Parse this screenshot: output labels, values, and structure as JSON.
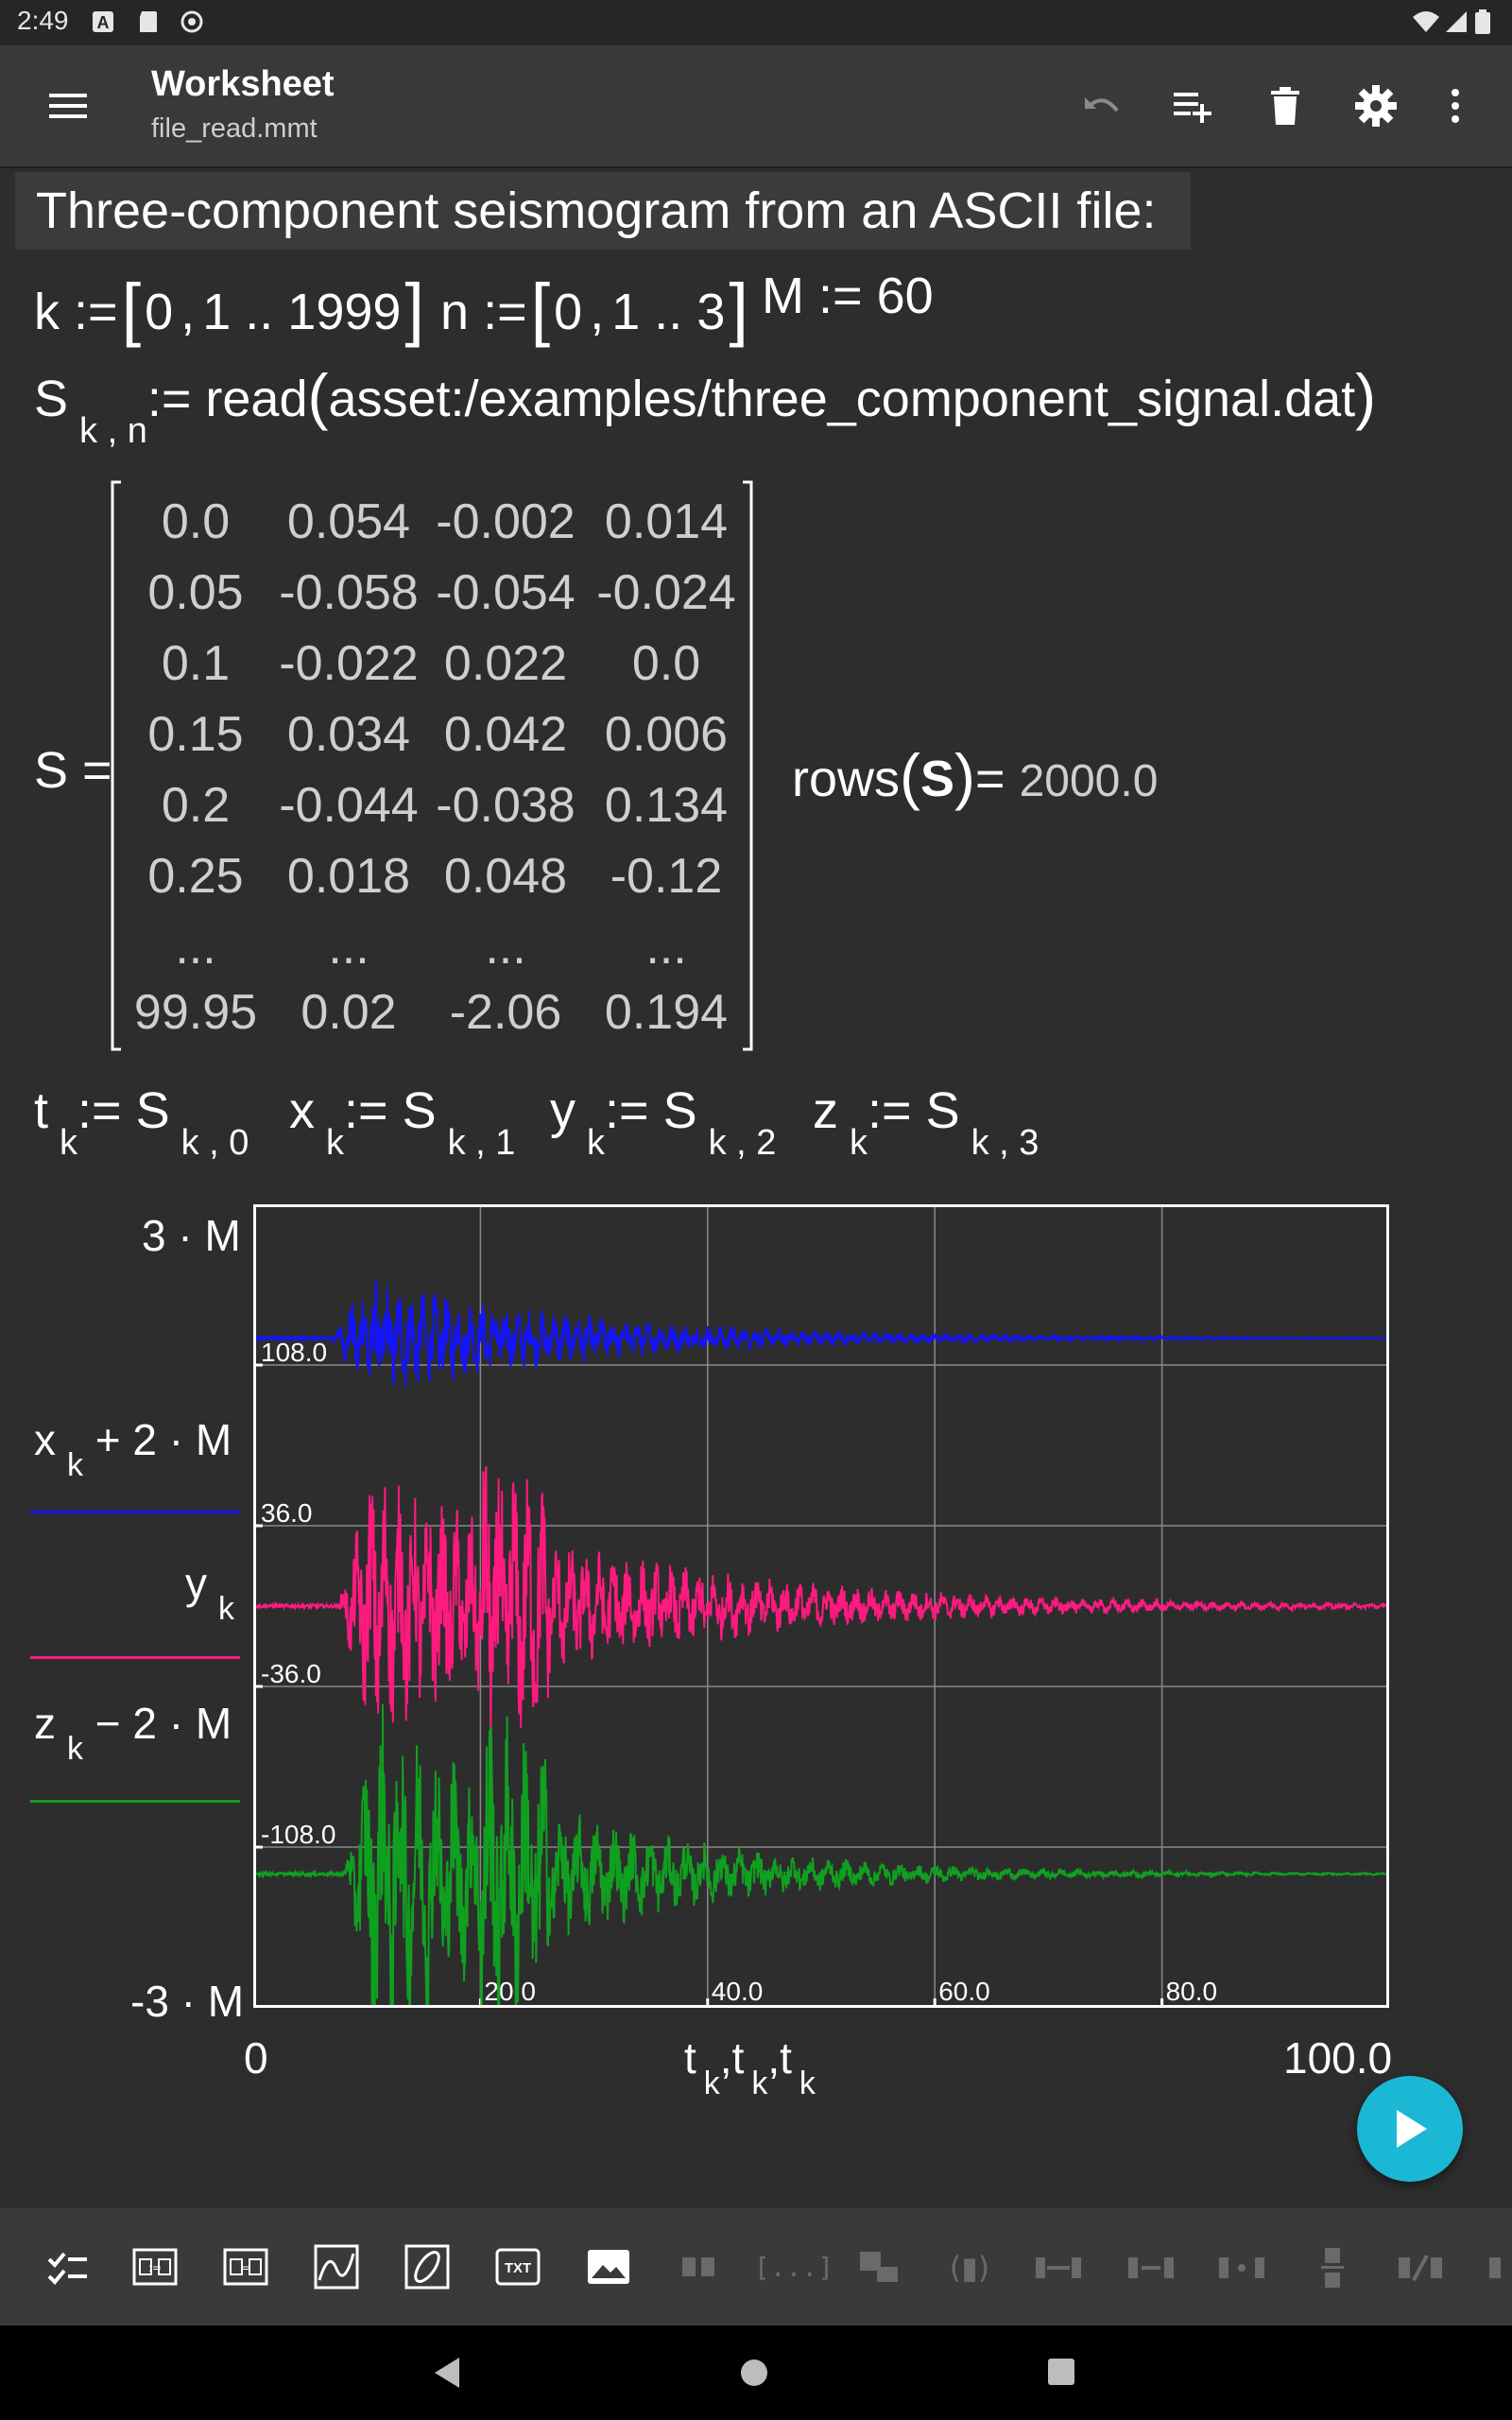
{
  "status": {
    "time": "2:49"
  },
  "appbar": {
    "title": "Worksheet",
    "file": "file_read.mmt"
  },
  "note": "Three-component seismogram from an ASCII file:",
  "defs": {
    "k": {
      "var": "k",
      "assign": ":=",
      "start": "0",
      "sep": ",",
      "second": "1",
      "dots": "..",
      "end": "1999"
    },
    "n": {
      "var": "n",
      "assign": ":=",
      "start": "0",
      "sep": ",",
      "second": "1",
      "dots": "..",
      "end": "3"
    },
    "M": {
      "var": "M",
      "assign": ":=",
      "value": "60"
    }
  },
  "read": {
    "var": "S",
    "sub": "k , n",
    "assign": ":=",
    "func": "read",
    "arg": "asset:/examples/three_component_signal.dat"
  },
  "matrix": {
    "label": "S =",
    "rows": [
      [
        "0.0",
        "0.054",
        "-0.002",
        "0.014"
      ],
      [
        "0.05",
        "-0.058",
        "-0.054",
        "-0.024"
      ],
      [
        "0.1",
        "-0.022",
        "0.022",
        "0.0"
      ],
      [
        "0.15",
        "0.034",
        "0.042",
        "0.006"
      ],
      [
        "0.2",
        "-0.044",
        "-0.038",
        "0.134"
      ],
      [
        "0.25",
        "0.018",
        "0.048",
        "-0.12"
      ],
      [
        "...",
        "...",
        "...",
        "..."
      ],
      [
        "99.95",
        "0.02",
        "-2.06",
        "0.194"
      ]
    ]
  },
  "rows": {
    "func": "rows",
    "arg": "S",
    "eq": "=",
    "value": "2000.0"
  },
  "assign": [
    {
      "var": "t",
      "sub": "k",
      "op": ":=",
      "rhs": "S",
      "rhs_sub": "k , 0"
    },
    {
      "var": "x",
      "sub": "k",
      "op": ":=",
      "rhs": "S",
      "rhs_sub": "k , 1"
    },
    {
      "var": "y",
      "sub": "k",
      "op": ":=",
      "rhs": "S",
      "rhs_sub": "k , 2"
    },
    {
      "var": "z",
      "sub": "k",
      "op": ":=",
      "rhs": "S",
      "rhs_sub": "k , 3"
    }
  ],
  "plot": {
    "ymax_label": "3 · M",
    "ymin_label": "-3 · M",
    "series_labels": [
      {
        "var": "x",
        "sub": "k",
        "rest": "+ 2 · M"
      },
      {
        "var": "y",
        "sub": "k",
        "rest": ""
      },
      {
        "var": "z",
        "sub": "k",
        "rest": "− 2 · M"
      }
    ],
    "x_axis": {
      "min": "0",
      "max": "100.0",
      "var": "t",
      "sub": "k",
      "sep": ","
    },
    "colors": {
      "x": "#1414ff",
      "y": "#ff1a80",
      "z": "#10a020",
      "grid": "#8a8a8a"
    }
  },
  "chart_data": {
    "type": "line",
    "title": "",
    "xlabel": "t k , t k , t k",
    "ylabel": "",
    "xlim": [
      0,
      100
    ],
    "ylim": [
      -180,
      180
    ],
    "x_ticks": [
      "20.0",
      "40.0",
      "60.0",
      "80.0"
    ],
    "x_tick_values": [
      20,
      40,
      60,
      80
    ],
    "y_ticks": [
      "108.0",
      "36.0",
      "-36.0",
      "-108.0"
    ],
    "y_tick_values": [
      108,
      36,
      -36,
      -108
    ],
    "series": [
      {
        "name": "x k + 2 · M",
        "offset": 120,
        "onset": 7,
        "peak_amp": 27,
        "decay": 0.05,
        "color": "#1414ff"
      },
      {
        "name": "y k",
        "offset": 0,
        "onset": 7.5,
        "peak_amp": 60,
        "decay": 0.045,
        "color": "#ff1a80"
      },
      {
        "name": "z k − 2 · M",
        "offset": -120,
        "onset": 8,
        "peak_amp": 80,
        "decay": 0.06,
        "color": "#10a020"
      }
    ]
  },
  "fab": {
    "label": "run"
  },
  "toolbar": {
    "txt_label": "TXT",
    "bracket_label": "[...]"
  }
}
